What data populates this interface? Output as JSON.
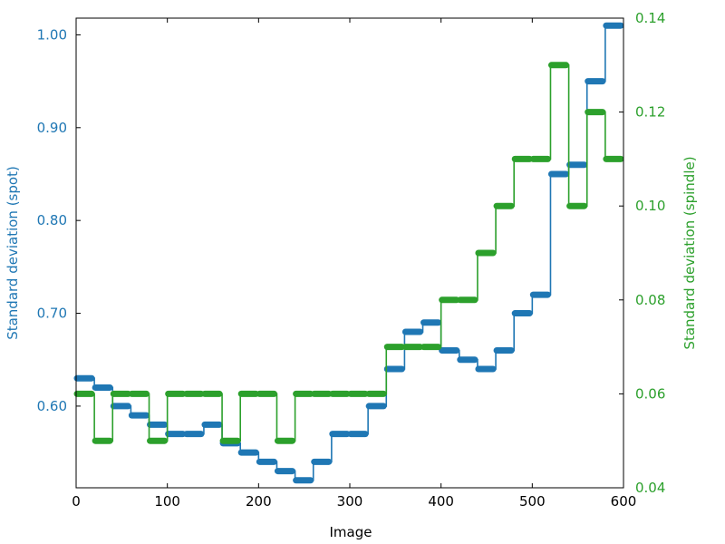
{
  "chart_data": {
    "type": "line",
    "xlabel": "Image",
    "xlim": [
      0,
      600
    ],
    "xticks": [
      0,
      100,
      200,
      300,
      400,
      500,
      600
    ],
    "y_left": {
      "label": "Standard deviation (spot)",
      "color": "#1f77b4",
      "lim": [
        0.512,
        1.018
      ],
      "ticks": [
        0.6,
        0.7,
        0.8,
        0.9,
        1.0
      ],
      "tick_labels": [
        "0.60",
        "0.70",
        "0.80",
        "0.90",
        "1.00"
      ]
    },
    "y_right": {
      "label": "Standard deviation (spindle)",
      "color": "#2ca02c",
      "lim": [
        0.04,
        0.14
      ],
      "ticks": [
        0.04,
        0.06,
        0.08,
        0.1,
        0.12,
        0.14
      ],
      "tick_labels": [
        "0.04",
        "0.06",
        "0.08",
        "0.10",
        "0.12",
        "0.14"
      ]
    },
    "block_width": 20,
    "series": [
      {
        "axis": "left",
        "color": "#1f77b4",
        "x_start": [
          0,
          20,
          40,
          60,
          80,
          100,
          120,
          140,
          160,
          180,
          200,
          220,
          240,
          260,
          280,
          300,
          320,
          340,
          360,
          380,
          400,
          420,
          440,
          460,
          480,
          500,
          520,
          540,
          560,
          580
        ],
        "values": [
          0.63,
          0.62,
          0.6,
          0.59,
          0.58,
          0.57,
          0.57,
          0.58,
          0.56,
          0.55,
          0.54,
          0.53,
          0.52,
          0.54,
          0.57,
          0.57,
          0.6,
          0.64,
          0.68,
          0.69,
          0.66,
          0.65,
          0.64,
          0.66,
          0.7,
          0.72,
          0.85,
          0.86,
          0.95,
          1.01
        ]
      },
      {
        "axis": "right",
        "color": "#2ca02c",
        "x_start": [
          0,
          20,
          40,
          60,
          80,
          100,
          120,
          140,
          160,
          180,
          200,
          220,
          240,
          260,
          280,
          300,
          320,
          340,
          360,
          380,
          400,
          420,
          440,
          460,
          480,
          500,
          520,
          540,
          560,
          580
        ],
        "values": [
          0.06,
          0.05,
          0.06,
          0.06,
          0.05,
          0.06,
          0.06,
          0.06,
          0.05,
          0.06,
          0.06,
          0.05,
          0.06,
          0.06,
          0.06,
          0.06,
          0.06,
          0.07,
          0.07,
          0.07,
          0.08,
          0.08,
          0.09,
          0.1,
          0.11,
          0.11,
          0.13,
          0.1,
          0.12,
          0.11
        ]
      }
    ]
  }
}
